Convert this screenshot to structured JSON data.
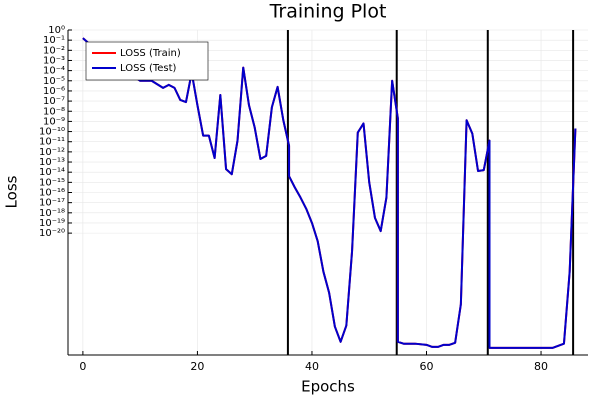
{
  "chart_data": {
    "type": "line",
    "title": "Training Plot",
    "x_label": "Epochs",
    "y_label": "Loss",
    "x": [
      0,
      1,
      5,
      10,
      12,
      14,
      15,
      16,
      17,
      18,
      19,
      20,
      21,
      22,
      23,
      24,
      25,
      26,
      27,
      28,
      29,
      30,
      31,
      32,
      33,
      34,
      35,
      36,
      36,
      37,
      38,
      39,
      40,
      41,
      42,
      43,
      44,
      45,
      46,
      47,
      48,
      49,
      50,
      51,
      52,
      53,
      54,
      55,
      55,
      56,
      58,
      60,
      61,
      62,
      63,
      64,
      65,
      66,
      67,
      68,
      69,
      70,
      71,
      71,
      74,
      78,
      82,
      84,
      85,
      86
    ],
    "series": [
      {
        "name": "LOSS (Train)",
        "color": "#ff0000",
        "values": [
          0.16,
          0.05,
          0.001,
          1e-05,
          1e-05,
          2e-06,
          4e-06,
          2e-06,
          1.3e-07,
          8e-08,
          6.3e-05,
          4e-08,
          4e-11,
          4e-11,
          2.5e-13,
          4e-07,
          2e-14,
          6.3e-15,
          1.3e-11,
          0.0002,
          4e-08,
          2.5e-10,
          2e-13,
          4e-13,
          2.5e-08,
          2.5e-06,
          1.3e-09,
          4e-12,
          4e-15,
          3.2e-16,
          3.2e-17,
          2.5e-18,
          1e-19,
          1.6e-21,
          1.6e-24,
          1.3e-26,
          6.3e-30,
          2e-31,
          8e-30,
          1.6e-22,
          8e-11,
          6.3e-10,
          1e-15,
          3.2e-19,
          1.6e-20,
          3.2e-17,
          1e-05,
          2e-09,
          2e-31,
          1.3e-31,
          1.3e-31,
          1e-31,
          6.3e-32,
          6.3e-32,
          1e-31,
          1e-31,
          1.6e-31,
          1e-27,
          1.3e-09,
          6.3e-11,
          1.3e-14,
          1.6e-14,
          1.3e-11,
          5e-32,
          5e-32,
          5e-32,
          5e-32,
          1.3e-31,
          1.6e-24,
          2e-10
        ]
      },
      {
        "name": "LOSS (Test)",
        "color": "#0000cc",
        "values": [
          0.16,
          0.05,
          0.001,
          1e-05,
          1e-05,
          2e-06,
          4e-06,
          2e-06,
          1.3e-07,
          8e-08,
          6.3e-05,
          4e-08,
          4e-11,
          4e-11,
          2.5e-13,
          4e-07,
          2e-14,
          6.3e-15,
          1.3e-11,
          0.0002,
          4e-08,
          2.5e-10,
          2e-13,
          4e-13,
          2.5e-08,
          2.5e-06,
          1.3e-09,
          4e-12,
          4e-15,
          3.2e-16,
          3.2e-17,
          2.5e-18,
          1e-19,
          1.6e-21,
          1.6e-24,
          1.3e-26,
          6.3e-30,
          2e-31,
          8e-30,
          1.6e-22,
          8e-11,
          6.3e-10,
          1e-15,
          3.2e-19,
          1.6e-20,
          3.2e-17,
          1e-05,
          2e-09,
          2e-31,
          1.3e-31,
          1.3e-31,
          1e-31,
          6.3e-32,
          6.3e-32,
          1e-31,
          1e-31,
          1.6e-31,
          1e-27,
          1.3e-09,
          6.3e-11,
          1.3e-14,
          1.6e-14,
          1.3e-11,
          5e-32,
          5e-32,
          5e-32,
          5e-32,
          1.3e-31,
          1.6e-24,
          2e-10
        ]
      }
    ],
    "vlines": [
      35.8,
      54.8,
      70.7,
      85.6
    ],
    "vline_color": "#000000",
    "xlim": [
      -2.6,
      88.2
    ],
    "xticks": [
      0,
      20,
      40,
      60,
      80
    ],
    "ylim": [
      1e-32,
      1
    ],
    "y_log": true,
    "yticks": [
      {
        "value": 1,
        "label": "10⁰"
      },
      {
        "value": 0.1,
        "label": "10⁻¹"
      },
      {
        "value": 0.01,
        "label": "10⁻²"
      },
      {
        "value": 0.001,
        "label": "10⁻³"
      },
      {
        "value": 0.0001,
        "label": "10⁻⁴"
      },
      {
        "value": 1e-05,
        "label": "10⁻⁵"
      },
      {
        "value": 1e-06,
        "label": "10⁻⁶"
      },
      {
        "value": 1e-07,
        "label": "10⁻⁷"
      },
      {
        "value": 1e-08,
        "label": "10⁻⁸"
      },
      {
        "value": 1e-09,
        "label": "10⁻⁹"
      },
      {
        "value": 1e-10,
        "label": "10⁻¹⁰"
      },
      {
        "value": 1e-11,
        "label": "10⁻¹¹"
      },
      {
        "value": 1e-12,
        "label": "10⁻¹²"
      },
      {
        "value": 1e-13,
        "label": "10⁻¹³"
      },
      {
        "value": 1e-14,
        "label": "10⁻¹⁴"
      },
      {
        "value": 1e-15,
        "label": "10⁻¹⁵"
      },
      {
        "value": 1e-16,
        "label": "10⁻¹⁶"
      },
      {
        "value": 1e-17,
        "label": "10⁻¹⁷"
      },
      {
        "value": 1e-18,
        "label": "10⁻¹⁸"
      },
      {
        "value": 1e-19,
        "label": "10⁻¹⁹"
      },
      {
        "value": 1e-20,
        "label": "10⁻²⁰"
      }
    ],
    "grid": true,
    "legend": "top-left"
  }
}
